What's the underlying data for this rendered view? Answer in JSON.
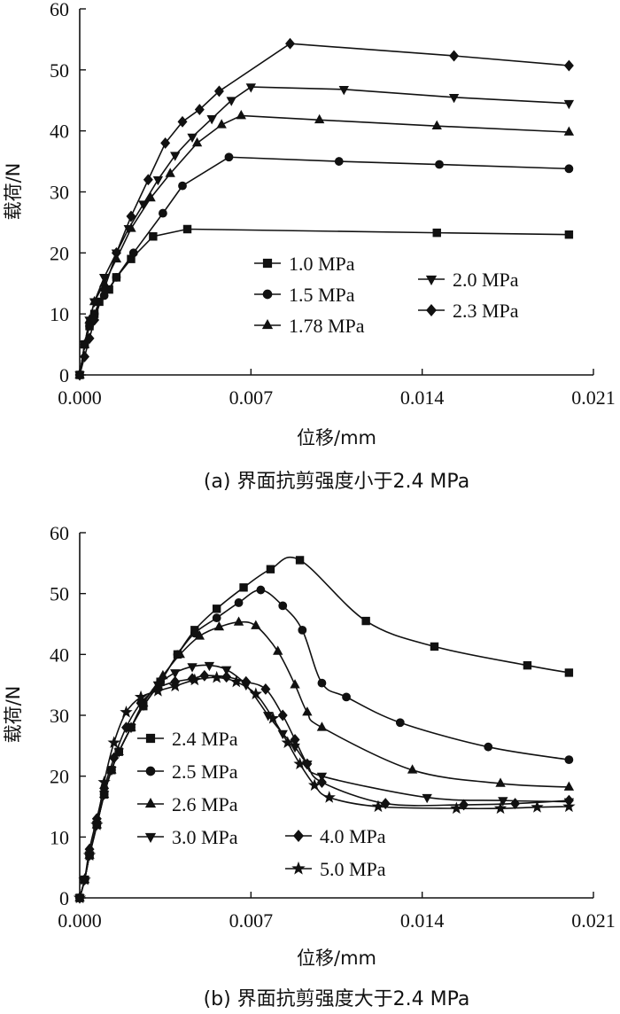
{
  "chart_data": [
    {
      "type": "line",
      "caption": "(a) 界面抗剪强度小于2.4 MPa",
      "xlabel": "位移/mm",
      "ylabel": "载荷/N",
      "xlim": [
        0,
        0.021
      ],
      "ylim": [
        0,
        60
      ],
      "xticks": [
        "0.000",
        "0.007",
        "0.014",
        "0.021"
      ],
      "yticks": [
        "0",
        "10",
        "20",
        "30",
        "40",
        "50",
        "60"
      ],
      "grid": false,
      "legend_columns": [
        [
          "1.0 MPa",
          "1.5 MPa",
          "1.78 MPa"
        ],
        [
          "2.0 MPa",
          "2.3 MPa"
        ]
      ],
      "series": [
        {
          "name": "1.0 MPa",
          "marker": "square",
          "x": [
            0,
            0.0002,
            0.0004,
            0.0006,
            0.0008,
            0.0012,
            0.0015,
            0.0021,
            0.003,
            0.0044,
            0.0146,
            0.02
          ],
          "y": [
            0,
            5,
            8,
            10,
            12,
            14,
            16,
            19,
            22.7,
            23.9,
            23.3,
            23
          ]
        },
        {
          "name": "1.5 MPa",
          "marker": "circle",
          "x": [
            0,
            0.0002,
            0.0004,
            0.0006,
            0.001,
            0.0015,
            0.0022,
            0.0034,
            0.0042,
            0.0061,
            0.0106,
            0.0147,
            0.02
          ],
          "y": [
            0,
            5,
            8,
            10,
            13,
            16,
            20,
            26.5,
            31,
            35.7,
            35,
            34.5,
            33.8
          ]
        },
        {
          "name": "1.78 MPa",
          "marker": "triangle",
          "x": [
            0,
            0.0002,
            0.0004,
            0.0006,
            0.001,
            0.0015,
            0.0021,
            0.0029,
            0.0037,
            0.0048,
            0.0058,
            0.0066,
            0.0098,
            0.0146,
            0.02
          ],
          "y": [
            0,
            5,
            9,
            12,
            15,
            19,
            24,
            29,
            33,
            38,
            41,
            42.5,
            41.8,
            40.8,
            39.8
          ]
        },
        {
          "name": "2.0 MPa",
          "marker": "triangle-down",
          "x": [
            0,
            0.0002,
            0.0004,
            0.0006,
            0.001,
            0.0015,
            0.002,
            0.0026,
            0.0032,
            0.0039,
            0.0046,
            0.0054,
            0.0062,
            0.007,
            0.0108,
            0.0153,
            0.02
          ],
          "y": [
            0,
            5,
            9,
            12,
            16,
            20,
            24,
            28,
            32,
            36,
            39,
            42,
            45,
            47.2,
            46.8,
            45.5,
            44.5
          ]
        },
        {
          "name": "2.3 MPa",
          "marker": "diamond",
          "x": [
            0,
            0.0002,
            0.0004,
            0.0006,
            0.001,
            0.0015,
            0.0021,
            0.0028,
            0.0035,
            0.0042,
            0.0049,
            0.0057,
            0.0086,
            0.0153,
            0.02
          ],
          "y": [
            0,
            3,
            6,
            9,
            14,
            20,
            26,
            32,
            38,
            41.5,
            43.5,
            46.5,
            54.3,
            52.3,
            50.7
          ]
        }
      ]
    },
    {
      "type": "line",
      "caption": "(b) 界面抗剪强度大于2.4 MPa",
      "xlabel": "位移/mm",
      "ylabel": "载荷/N",
      "xlim": [
        0,
        0.021
      ],
      "ylim": [
        0,
        60
      ],
      "xticks": [
        "0.000",
        "0.007",
        "0.014",
        "0.021"
      ],
      "yticks": [
        "0",
        "10",
        "20",
        "30",
        "40",
        "50",
        "60"
      ],
      "grid": false,
      "legend_columns": [
        [
          "2.4 MPa",
          "2.5 MPa",
          "2.6 MPa",
          "3.0 MPa"
        ],
        [
          "4.0 MPa",
          "5.0 MPa"
        ]
      ],
      "series": [
        {
          "name": "2.4 MPa",
          "marker": "square",
          "x": [
            0,
            0.0002,
            0.0004,
            0.0007,
            0.001,
            0.0013,
            0.0016,
            0.0021,
            0.0026,
            0.0033,
            0.004,
            0.0047,
            0.0056,
            0.0067,
            0.0078,
            0.009,
            0.0117,
            0.0145,
            0.0183,
            0.02
          ],
          "y": [
            0,
            3,
            7,
            12,
            17,
            21,
            24,
            28,
            31.5,
            35.5,
            40,
            44,
            47.5,
            51,
            54,
            55.5,
            45.5,
            41.3,
            38.2,
            37
          ]
        },
        {
          "name": "2.5 MPa",
          "marker": "circle",
          "x": [
            0,
            0.0002,
            0.0004,
            0.0007,
            0.001,
            0.0013,
            0.0016,
            0.0021,
            0.0026,
            0.0033,
            0.004,
            0.0047,
            0.0056,
            0.0065,
            0.0074,
            0.0083,
            0.0091,
            0.0099,
            0.0109,
            0.0131,
            0.0167,
            0.02
          ],
          "y": [
            0,
            3,
            7,
            12,
            17,
            21,
            24,
            28,
            31.5,
            35.5,
            40,
            43.5,
            46,
            48.5,
            50.6,
            48,
            44,
            35.3,
            33,
            28.8,
            24.8,
            22.7
          ]
        },
        {
          "name": "2.6 MPa",
          "marker": "triangle",
          "x": [
            0,
            0.0002,
            0.0004,
            0.0007,
            0.001,
            0.0013,
            0.0016,
            0.0021,
            0.0026,
            0.0034,
            0.0041,
            0.0049,
            0.0057,
            0.0065,
            0.0072,
            0.0081,
            0.0088,
            0.0093,
            0.0099,
            0.0136,
            0.0172,
            0.02
          ],
          "y": [
            0,
            3,
            7,
            12,
            17,
            21,
            24,
            28,
            32,
            36.5,
            40,
            43,
            44.5,
            45.3,
            44.7,
            40.5,
            35,
            30.5,
            28,
            21,
            18.8,
            18.2
          ]
        },
        {
          "name": "3.0 MPa",
          "marker": "triangle-down",
          "x": [
            0,
            0.0002,
            0.0004,
            0.0007,
            0.001,
            0.0013,
            0.0016,
            0.0021,
            0.0026,
            0.0032,
            0.0039,
            0.0046,
            0.0053,
            0.006,
            0.0068,
            0.0077,
            0.0083,
            0.0088,
            0.0093,
            0.0099,
            0.0142,
            0.0173,
            0.02
          ],
          "y": [
            0,
            3,
            7,
            12,
            17,
            21,
            24,
            28,
            32,
            35,
            37,
            38,
            38.2,
            37.5,
            35,
            30,
            27,
            24.8,
            22,
            20,
            16.5,
            16,
            15.8
          ]
        },
        {
          "name": "4.0 MPa",
          "marker": "diamond",
          "x": [
            0,
            0.0002,
            0.0004,
            0.0007,
            0.001,
            0.0014,
            0.0019,
            0.0025,
            0.0032,
            0.0039,
            0.0046,
            0.0051,
            0.006,
            0.0068,
            0.0076,
            0.0083,
            0.0088,
            0.0093,
            0.0099,
            0.0125,
            0.0157,
            0.0178,
            0.02
          ],
          "y": [
            0,
            3,
            8,
            13,
            18,
            23,
            28,
            32,
            34.5,
            35.5,
            36,
            36.5,
            36.3,
            35.5,
            34.3,
            30,
            26,
            22,
            19,
            15.5,
            15.3,
            15.5,
            16
          ]
        },
        {
          "name": "5.0 MPa",
          "marker": "star",
          "x": [
            0,
            0.0002,
            0.0004,
            0.0007,
            0.001,
            0.0014,
            0.0019,
            0.0025,
            0.0032,
            0.0039,
            0.0047,
            0.0056,
            0.0064,
            0.0072,
            0.0079,
            0.0085,
            0.009,
            0.0096,
            0.0102,
            0.0122,
            0.0154,
            0.0172,
            0.0187,
            0.02
          ],
          "y": [
            0,
            3,
            7,
            12,
            19,
            25.5,
            30.5,
            33,
            34,
            34.8,
            35.8,
            36.2,
            35.5,
            33.5,
            29.5,
            25.5,
            22,
            18.5,
            16.5,
            15,
            14.7,
            14.7,
            14.9,
            15
          ]
        }
      ]
    }
  ]
}
